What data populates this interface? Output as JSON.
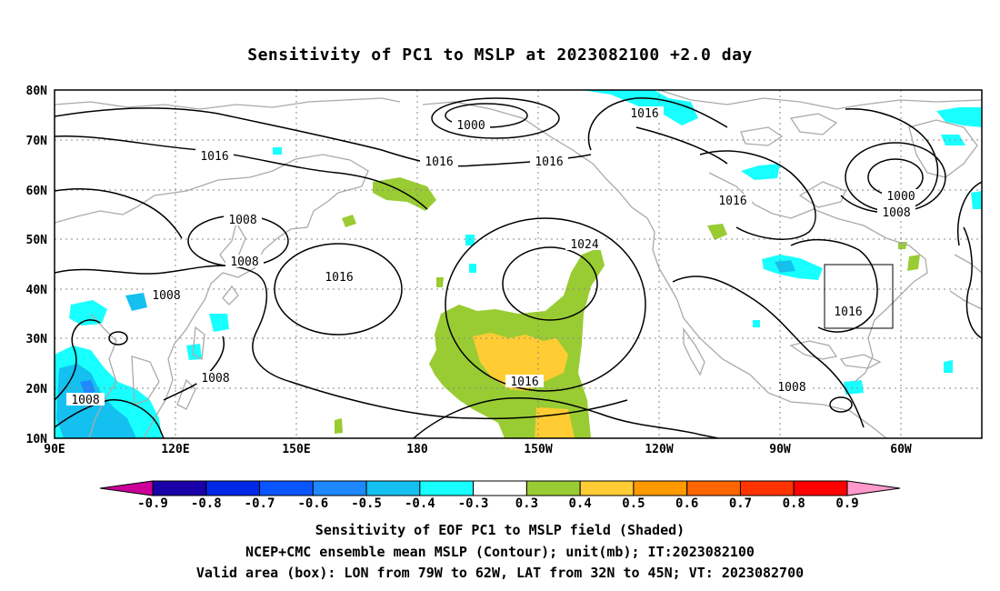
{
  "title": "Sensitivity of PC1 to MSLP at 2023082100 +2.0 day",
  "lat_labels": [
    "80N",
    "70N",
    "60N",
    "50N",
    "40N",
    "30N",
    "20N",
    "10N"
  ],
  "lon_labels": [
    "90E",
    "120E",
    "150E",
    "180",
    "150W",
    "120W",
    "90W",
    "60W"
  ],
  "contour_labels": [
    "1000",
    "1016",
    "1016",
    "1016",
    "1016",
    "1000",
    "1008",
    "1016",
    "1016",
    "1008",
    "1008",
    "1016",
    "1024",
    "1008",
    "1016",
    "1008",
    "1008",
    "1016",
    "1008"
  ],
  "colorbar": {
    "labels": [
      "-0.9",
      "-0.8",
      "-0.7",
      "-0.6",
      "-0.5",
      "-0.4",
      "-0.3",
      "0.3",
      "0.4",
      "0.5",
      "0.6",
      "0.7",
      "0.8",
      "0.9"
    ],
    "colors": [
      "#1a00a8",
      "#0028e6",
      "#0a55ff",
      "#1e88ff",
      "#14c0f0",
      "#18ffff",
      "#ffffff",
      "#99cc33",
      "#ffcc33",
      "#ff9900",
      "#ff6600",
      "#ff3300",
      "#ff0000"
    ],
    "left_tip_color": "#cc0099",
    "right_tip_color": "#ff99cc"
  },
  "valid_box": {
    "lon_from": "79W",
    "lon_to": "62W",
    "lat_from": "32N",
    "lat_to": "45N"
  },
  "footer": {
    "line1": "Sensitivity of EOF PC1 to MSLP field (Shaded)",
    "line2": "NCEP+CMC ensemble mean MSLP (Contour); unit(mb); IT:2023082100",
    "line3": "Valid area (box): LON from 79W to 62W, LAT from 32N to 45N; VT: 2023082700"
  }
}
